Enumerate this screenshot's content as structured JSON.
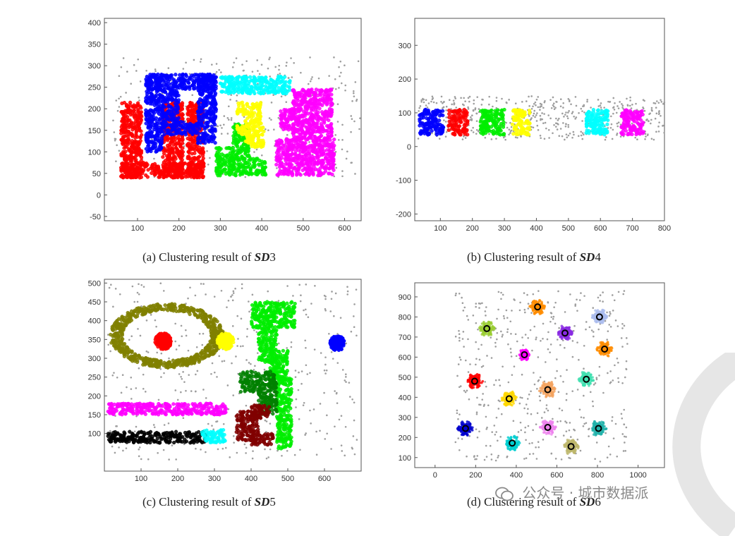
{
  "captions": [
    {
      "prefix": "(a) Clustering result of ",
      "name": "SD",
      "suffix": "3"
    },
    {
      "prefix": "(b) Clustering result of ",
      "name": "SD",
      "suffix": "4"
    },
    {
      "prefix": "(c) Clustering result of ",
      "name": "SD",
      "suffix": "5"
    },
    {
      "prefix": "(d) Clustering result of ",
      "name": "SD",
      "suffix": "6"
    }
  ],
  "watermark": {
    "text": "公众号 · 城市数据派"
  },
  "chart_data": [
    {
      "type": "scatter",
      "title": "",
      "xlim": [
        20,
        640
      ],
      "ylim": [
        -60,
        410
      ],
      "xticks": [
        100,
        200,
        300,
        400,
        500,
        600
      ],
      "yticks": [
        -50,
        0,
        50,
        100,
        150,
        200,
        250,
        300,
        350,
        400
      ],
      "noise": {
        "color": "#9e9e9e",
        "region": [
          [
            40,
            640
          ],
          [
            40,
            320
          ]
        ],
        "count": 380
      },
      "clusters": [
        {
          "color": "#ff0000",
          "rects": [
            [
              60,
              260,
              40,
              75
            ],
            [
              60,
              110,
              40,
              215
            ],
            [
              160,
              210,
              40,
              215
            ],
            [
              220,
              260,
              40,
              215
            ]
          ]
        },
        {
          "color": "#0000ff",
          "rects": [
            [
              120,
              290,
              245,
              280
            ],
            [
              120,
              160,
              100,
              280
            ],
            [
              245,
              290,
              120,
              280
            ],
            [
              160,
              245,
              140,
              170
            ],
            [
              160,
              200,
              170,
              245
            ]
          ]
        },
        {
          "color": "#00ee00",
          "rects": [
            [
              290,
              410,
              45,
              85
            ],
            [
              330,
              370,
              85,
              165
            ],
            [
              290,
              330,
              85,
              110
            ]
          ]
        },
        {
          "color": "#00ffff",
          "rects": [
            [
              300,
              470,
              235,
              275
            ]
          ]
        },
        {
          "color": "#ffff00",
          "rects": [
            [
              340,
              400,
              185,
              215
            ],
            [
              360,
              405,
              110,
              185
            ],
            [
              340,
              370,
              140,
              165
            ]
          ]
        },
        {
          "color": "#ff00ff",
          "rects": [
            [
              435,
              575,
              45,
              130
            ],
            [
              475,
              570,
              130,
              245
            ],
            [
              445,
              480,
              150,
              200
            ]
          ]
        }
      ]
    },
    {
      "type": "scatter",
      "title": "",
      "xlim": [
        20,
        800
      ],
      "ylim": [
        -220,
        380
      ],
      "xticks": [
        100,
        200,
        300,
        400,
        500,
        600,
        700,
        800
      ],
      "yticks": [
        -200,
        -100,
        0,
        100,
        200,
        300
      ],
      "noise": {
        "color": "#9e9e9e",
        "region": [
          [
            30,
            800
          ],
          [
            20,
            150
          ]
        ],
        "count": 520
      },
      "clusters": [
        {
          "color": "#0000ff",
          "rects": [
            [
              35,
              110,
              35,
              110
            ]
          ]
        },
        {
          "color": "#ff0000",
          "rects": [
            [
              125,
              185,
              35,
              110
            ]
          ]
        },
        {
          "color": "#00ee00",
          "rects": [
            [
              225,
              300,
              35,
              110
            ]
          ]
        },
        {
          "color": "#ffff00",
          "rects": [
            [
              325,
              380,
              35,
              110
            ]
          ]
        },
        {
          "color": "#00ffff",
          "rects": [
            [
              555,
              625,
              35,
              110
            ]
          ]
        },
        {
          "color": "#ff00ff",
          "rects": [
            [
              665,
              735,
              35,
              110
            ]
          ]
        }
      ]
    },
    {
      "type": "scatter",
      "title": "",
      "xlim": [
        0,
        700
      ],
      "ylim": [
        0,
        510
      ],
      "xticks": [
        100,
        200,
        300,
        400,
        500,
        600
      ],
      "yticks": [
        100,
        150,
        200,
        250,
        300,
        350,
        400,
        450,
        500
      ],
      "noise": {
        "color": "#9e9e9e",
        "region": [
          [
            10,
            690
          ],
          [
            30,
            500
          ]
        ],
        "count": 420
      },
      "clusters": [
        {
          "color": "#808000",
          "ellipses": [
            [
              170,
              360,
              155,
              85,
              140,
              60
            ]
          ]
        },
        {
          "color": "#ff0000",
          "ellipses": [
            [
              160,
              345,
              0,
              0,
              22,
              22
            ]
          ]
        },
        {
          "color": "#ffff00",
          "ellipses": [
            [
              330,
              345,
              0,
              0,
              22,
              22
            ]
          ]
        },
        {
          "color": "#00ee00",
          "rects": [
            [
              400,
              520,
              380,
              450
            ],
            [
              420,
              470,
              290,
              380
            ],
            [
              450,
              500,
              230,
              320
            ],
            [
              470,
              510,
              60,
              250
            ]
          ]
        },
        {
          "color": "#0000ff",
          "ellipses": [
            [
              635,
              340,
              0,
              0,
              20,
              20
            ]
          ]
        },
        {
          "color": "#ff00ff",
          "rects": [
            [
              10,
              335,
              150,
              180
            ]
          ]
        },
        {
          "color": "#000000",
          "rects": [
            [
              10,
              280,
              75,
              105
            ]
          ]
        },
        {
          "color": "#00ffff",
          "rects": [
            [
              265,
              330,
              75,
              110
            ]
          ]
        },
        {
          "color": "#008000",
          "rects": [
            [
              370,
              470,
              210,
              265
            ],
            [
              420,
              470,
              150,
              210
            ]
          ]
        },
        {
          "color": "#800000",
          "rects": [
            [
              360,
              420,
              80,
              160
            ],
            [
              400,
              460,
              70,
              100
            ],
            [
              400,
              450,
              135,
              175
            ]
          ]
        }
      ]
    },
    {
      "type": "scatter",
      "title": "",
      "xlim": [
        -100,
        1130
      ],
      "ylim": [
        50,
        970
      ],
      "xticks": [
        0,
        200,
        400,
        600,
        800,
        1000
      ],
      "yticks": [
        100,
        200,
        300,
        400,
        500,
        600,
        700,
        800,
        900
      ],
      "noise": {
        "color": "#9e9e9e",
        "region": [
          [
            100,
            950
          ],
          [
            80,
            930
          ]
        ],
        "count": 420
      },
      "clusters": [
        {
          "color": "#ff8c00",
          "blob": [
            505,
            850,
            40
          ],
          "center": [
            505,
            850
          ]
        },
        {
          "color": "#9acd32",
          "blob": [
            255,
            742,
            40
          ],
          "center": [
            255,
            742
          ]
        },
        {
          "color": "#8a2be2",
          "blob": [
            640,
            720,
            40
          ],
          "center": [
            640,
            720
          ]
        },
        {
          "color": "#aabbee",
          "blob": [
            810,
            800,
            40
          ],
          "center": [
            810,
            800
          ]
        },
        {
          "color": "#ff00ff",
          "blob": [
            440,
            612,
            30
          ],
          "center": [
            440,
            612
          ]
        },
        {
          "color": "#ff8c00",
          "blob": [
            835,
            640,
            40
          ],
          "center": [
            835,
            640
          ]
        },
        {
          "color": "#ff0000",
          "blob": [
            195,
            480,
            40
          ],
          "center": [
            195,
            480
          ]
        },
        {
          "color": "#40e0b0",
          "blob": [
            745,
            490,
            40
          ],
          "center": [
            745,
            490
          ]
        },
        {
          "color": "#f4a460",
          "blob": [
            555,
            438,
            45
          ],
          "center": [
            555,
            438
          ]
        },
        {
          "color": "#ffd700",
          "blob": [
            365,
            393,
            40
          ],
          "center": [
            365,
            393
          ]
        },
        {
          "color": "#0000cd",
          "blob": [
            150,
            245,
            40
          ],
          "center": [
            150,
            245
          ]
        },
        {
          "color": "#ee82ee",
          "blob": [
            555,
            250,
            40
          ],
          "center": [
            555,
            250
          ]
        },
        {
          "color": "#20b2aa",
          "blob": [
            805,
            245,
            40
          ],
          "center": [
            805,
            245
          ]
        },
        {
          "color": "#00ced1",
          "blob": [
            380,
            172,
            40
          ],
          "center": [
            380,
            172
          ]
        },
        {
          "color": "#bdb76b",
          "blob": [
            670,
            155,
            40
          ],
          "center": [
            670,
            155
          ]
        }
      ]
    }
  ]
}
